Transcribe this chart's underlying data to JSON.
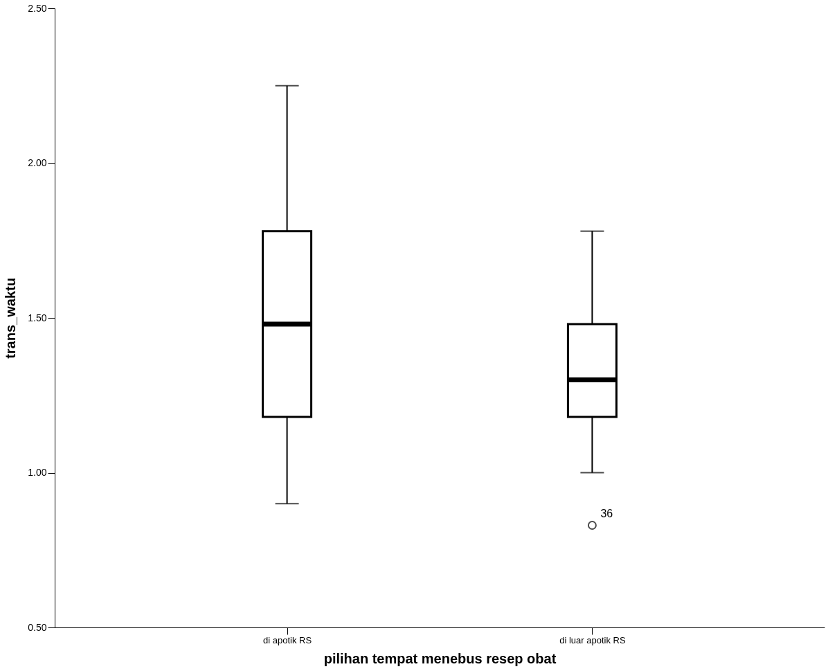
{
  "chart_data": {
    "type": "box",
    "xlabel": "pilihan tempat menebus resep obat",
    "ylabel": "trans_waktu",
    "categories": [
      "di apotik RS",
      "di luar apotik RS"
    ],
    "boxes": [
      {
        "low": 0.9,
        "q1": 1.18,
        "median": 1.48,
        "q3": 1.78,
        "high": 2.25
      },
      {
        "low": 1.0,
        "q1": 1.18,
        "median": 1.3,
        "q3": 1.48,
        "high": 1.78,
        "outliers": [
          0.83
        ]
      }
    ],
    "ylim": [
      0.5,
      2.5
    ],
    "yticks": [
      {
        "value": 0.5,
        "label": "0.50"
      },
      {
        "value": 1.0,
        "label": "1.00"
      },
      {
        "value": 1.5,
        "label": "1.50"
      },
      {
        "value": 2.0,
        "label": "2.00"
      },
      {
        "value": 2.5,
        "label": "2.50"
      }
    ],
    "grid": false,
    "annotations": [
      "36"
    ]
  }
}
